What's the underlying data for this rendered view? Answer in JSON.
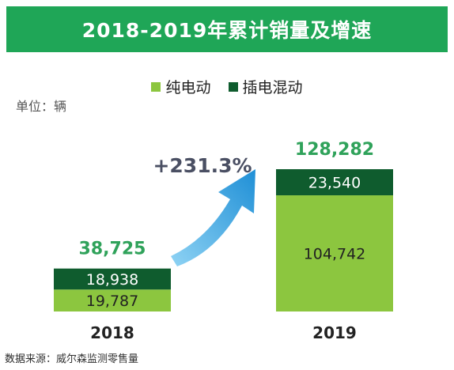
{
  "header": {
    "title": "2018-2019年累计销量及增速"
  },
  "legend": {
    "items": [
      {
        "label": "纯电动",
        "color": "#8cc63f"
      },
      {
        "label": "插电混动",
        "color": "#0f5c2e"
      }
    ]
  },
  "unit_label": "单位：辆",
  "growth_label": "+231.3%",
  "source_text": "数据来源：威尔森监测零售量",
  "colors": {
    "banner": "#1fa657",
    "bev": "#8cc63f",
    "phev": "#0f5c2e",
    "total_text": "#2fa25a",
    "arrow": "#3aa3dc",
    "growth_text": "#4a4f63"
  },
  "chart_data": {
    "type": "bar",
    "stacked": true,
    "title": "2018-2019年累计销量及增速",
    "ylabel": "单位：辆",
    "categories": [
      "2018",
      "2019"
    ],
    "series": [
      {
        "name": "纯电动",
        "values": [
          19787,
          104742
        ],
        "labels": [
          "19,787",
          "104,742"
        ]
      },
      {
        "name": "插电混动",
        "values": [
          18938,
          23540
        ],
        "labels": [
          "18,938",
          "23,540"
        ]
      }
    ],
    "totals": [
      38725,
      128282
    ],
    "total_labels": [
      "38,725",
      "128,282"
    ],
    "annotation": "+231.3%",
    "legend_position": "top"
  }
}
